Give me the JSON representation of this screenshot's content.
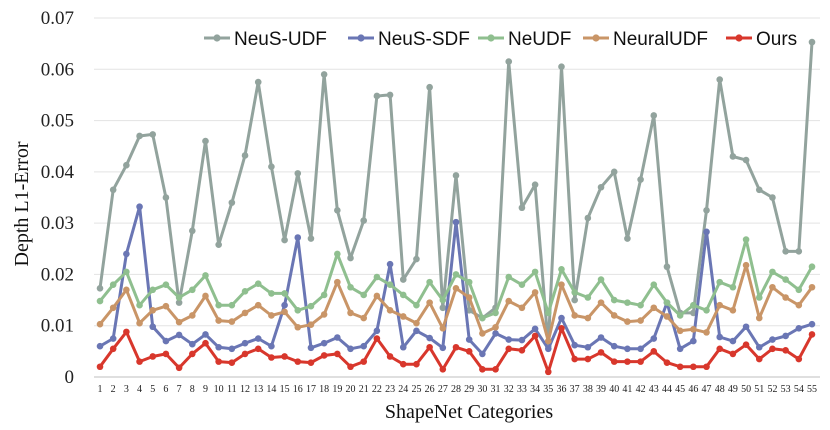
{
  "chart_data": {
    "type": "line",
    "xlabel": "ShapeNet Categories",
    "ylabel": "Depth L1-Error",
    "ylim": [
      0,
      0.07
    ],
    "yticks": [
      "0",
      "0.01",
      "0.02",
      "0.03",
      "0.04",
      "0.05",
      "0.06",
      "0.07"
    ],
    "ytick_values": [
      0,
      0.01,
      0.02,
      0.03,
      0.04,
      0.05,
      0.06,
      0.07
    ],
    "grid": "horizontal",
    "legend_position": "top",
    "categories": [
      "1",
      "2",
      "3",
      "4",
      "5",
      "6",
      "7",
      "8",
      "9",
      "10",
      "11",
      "12",
      "13",
      "14",
      "15",
      "16",
      "17",
      "18",
      "19",
      "20",
      "21",
      "22",
      "23",
      "24",
      "25",
      "26",
      "27",
      "28",
      "29",
      "30",
      "31",
      "32",
      "33",
      "34",
      "35",
      "36",
      "37",
      "38",
      "39",
      "40",
      "41",
      "42",
      "43",
      "44",
      "45",
      "46",
      "47",
      "48",
      "49",
      "50",
      "51",
      "52",
      "53",
      "54",
      "55"
    ],
    "series": [
      {
        "name": "NeuS-UDF",
        "color": "#92a39d",
        "values": [
          0.0173,
          0.0365,
          0.0413,
          0.047,
          0.0473,
          0.035,
          0.0145,
          0.0285,
          0.046,
          0.0258,
          0.034,
          0.0432,
          0.0575,
          0.041,
          0.0267,
          0.0397,
          0.027,
          0.059,
          0.0325,
          0.0232,
          0.0305,
          0.0548,
          0.055,
          0.019,
          0.023,
          0.0565,
          0.0135,
          0.0393,
          0.013,
          0.0115,
          0.0135,
          0.0615,
          0.033,
          0.0375,
          0.006,
          0.0605,
          0.015,
          0.031,
          0.037,
          0.04,
          0.027,
          0.0385,
          0.051,
          0.0215,
          0.0125,
          0.0125,
          0.0325,
          0.058,
          0.043,
          0.0423,
          0.0365,
          0.035,
          0.0245,
          0.0245,
          0.0653
        ]
      },
      {
        "name": "NeuS-SDF",
        "color": "#6a76b4",
        "values": [
          0.006,
          0.0075,
          0.024,
          0.0332,
          0.0098,
          0.007,
          0.0082,
          0.0064,
          0.0083,
          0.0058,
          0.0055,
          0.0066,
          0.0075,
          0.006,
          0.014,
          0.0272,
          0.0057,
          0.0066,
          0.0077,
          0.0055,
          0.006,
          0.009,
          0.022,
          0.0058,
          0.009,
          0.0076,
          0.0057,
          0.0302,
          0.0073,
          0.0045,
          0.0085,
          0.0073,
          0.0072,
          0.0094,
          0.0055,
          0.0115,
          0.0062,
          0.0058,
          0.0077,
          0.006,
          0.0055,
          0.0055,
          0.0075,
          0.0145,
          0.0055,
          0.007,
          0.0283,
          0.0078,
          0.007,
          0.0098,
          0.0058,
          0.0073,
          0.008,
          0.0095,
          0.0103
        ]
      },
      {
        "name": "NeUDF",
        "color": "#8fbf8f",
        "values": [
          0.0148,
          0.018,
          0.0205,
          0.014,
          0.017,
          0.018,
          0.0155,
          0.017,
          0.0198,
          0.014,
          0.014,
          0.0167,
          0.0182,
          0.0163,
          0.0163,
          0.013,
          0.0138,
          0.016,
          0.024,
          0.0175,
          0.016,
          0.0195,
          0.018,
          0.016,
          0.014,
          0.0185,
          0.015,
          0.02,
          0.0185,
          0.0115,
          0.0125,
          0.0195,
          0.018,
          0.0205,
          0.0125,
          0.021,
          0.0165,
          0.0155,
          0.019,
          0.015,
          0.0145,
          0.014,
          0.018,
          0.0145,
          0.012,
          0.014,
          0.013,
          0.0185,
          0.0175,
          0.0268,
          0.0155,
          0.0205,
          0.019,
          0.017,
          0.0215
        ]
      },
      {
        "name": "NeuralUDF",
        "color": "#c99567",
        "values": [
          0.0103,
          0.0135,
          0.017,
          0.0105,
          0.013,
          0.0138,
          0.0107,
          0.012,
          0.0158,
          0.011,
          0.0108,
          0.0125,
          0.014,
          0.012,
          0.0127,
          0.0097,
          0.0102,
          0.0122,
          0.0185,
          0.0125,
          0.0115,
          0.0158,
          0.013,
          0.0118,
          0.0105,
          0.0145,
          0.0095,
          0.0173,
          0.0155,
          0.0085,
          0.0097,
          0.0148,
          0.0135,
          0.0165,
          0.007,
          0.018,
          0.012,
          0.0115,
          0.0145,
          0.012,
          0.0108,
          0.011,
          0.0135,
          0.0118,
          0.009,
          0.0093,
          0.0087,
          0.014,
          0.013,
          0.0218,
          0.0115,
          0.0175,
          0.0155,
          0.014,
          0.0175
        ]
      },
      {
        "name": "Ours",
        "color": "#d8372c",
        "values": [
          0.002,
          0.0055,
          0.0088,
          0.003,
          0.004,
          0.0045,
          0.0018,
          0.0045,
          0.0066,
          0.003,
          0.0028,
          0.0045,
          0.0055,
          0.0038,
          0.004,
          0.003,
          0.0028,
          0.0042,
          0.0045,
          0.002,
          0.003,
          0.0075,
          0.004,
          0.0025,
          0.0025,
          0.0058,
          0.0015,
          0.0058,
          0.005,
          0.0015,
          0.0015,
          0.0055,
          0.0052,
          0.008,
          0.001,
          0.0095,
          0.0035,
          0.0035,
          0.0048,
          0.003,
          0.003,
          0.003,
          0.005,
          0.0028,
          0.002,
          0.002,
          0.002,
          0.0055,
          0.0045,
          0.0063,
          0.0035,
          0.0055,
          0.0052,
          0.0035,
          0.0083
        ]
      }
    ]
  }
}
